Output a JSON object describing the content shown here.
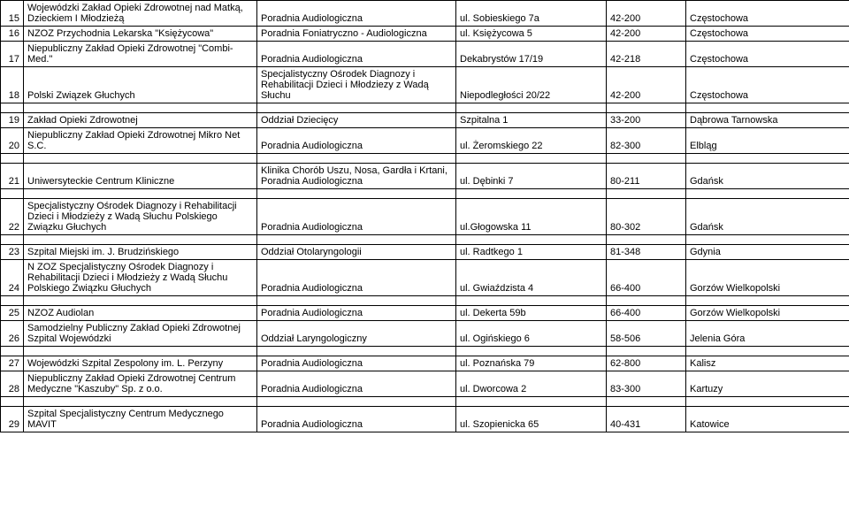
{
  "rows": [
    {
      "n": "15",
      "inst": "Wojewódzki Zakład Opieki Zdrowotnej nad Matką, Dzieckiem I Młodzieżą",
      "dept": "Poradnia Audiologiczna",
      "addr": "ul. Sobieskiego 7a",
      "zip": "42-200",
      "city": "Częstochowa"
    },
    {
      "n": "16",
      "inst": "NZOZ Przychodnia Lekarska \"Księżycowa\"",
      "dept": "Poradnia Foniatryczno - Audiologiczna",
      "addr": "ul. Księżycowa 5",
      "zip": "42-200",
      "city": "Częstochowa"
    },
    {
      "n": "17",
      "inst": "Niepubliczny Zakład Opieki Zdrowotnej \"Combi-Med.\"",
      "dept": "Poradnia Audiologiczna",
      "addr": "Dekabrystów 17/19",
      "zip": "42-218",
      "city": "Częstochowa"
    },
    {
      "n": "18",
      "inst": "Polski Związek Głuchych",
      "dept": "Specjalistyczny Ośrodek Diagnozy i Rehabilitacji Dzieci i Młodziezy z Wadą Słuchu",
      "addr": "Niepodległości 20/22",
      "zip": "42-200",
      "city": "Częstochowa"
    },
    {
      "n": "19",
      "inst": "Zakład Opieki Zdrowotnej",
      "dept": "Oddział Dziecięcy",
      "addr": "Szpitalna 1",
      "zip": "33-200",
      "city": "Dąbrowa Tarnowska"
    },
    {
      "n": "20",
      "inst": "Niepubliczny Zakład Opieki Zdrowotnej Mikro Net S.C.",
      "dept": "Poradnia  Audiologiczna",
      "addr": "ul. Żeromskiego 22",
      "zip": "82-300",
      "city": "Elbląg"
    },
    {
      "n": "21",
      "inst": "Uniwersyteckie Centrum Kliniczne",
      "dept": "Klinika Chorób Uszu, Nosa, Gardła i Krtani, Poradnia Audiologiczna",
      "addr": "ul. Dębinki 7",
      "zip": "80-211",
      "city": "Gdańsk"
    },
    {
      "n": "22",
      "inst": "Specjalistyczny Ośrodek Diagnozy i Rehabilitacji Dzieci i Młodzieży z Wadą Słuchu Polskiego Związku Głuchych",
      "dept": "Poradnia Audiologiczna",
      "addr": "ul.Głogowska 11",
      "zip": "80-302",
      "city": "Gdańsk"
    },
    {
      "n": "23",
      "inst": "Szpital Miejski im. J. Brudzińskiego",
      "dept": "Oddział Otolaryngologii",
      "addr": "ul. Radtkego 1",
      "zip": "81-348",
      "city": "Gdynia"
    },
    {
      "n": "24",
      "inst": "N ZOZ Specjalistyczny Ośrodek Diagnozy i Rehabilitacji Dzieci i Młodzieży z Wadą Słuchu Polskiego Związku Głuchych",
      "dept": "Poradnia Audiologiczna",
      "addr": "ul. Gwiaździsta 4",
      "zip": "66-400",
      "city": "Gorzów Wielkopolski"
    },
    {
      "n": "25",
      "inst": "NZOZ Audiolan",
      "dept": "Poradnia Audiologiczna",
      "addr": "ul. Dekerta 59b",
      "zip": "66-400",
      "city": "Gorzów Wielkopolski"
    },
    {
      "n": "26",
      "inst": "Samodzielny Publiczny Zakład Opieki Zdrowotnej Szpital Wojewódzki",
      "dept": "Oddział Laryngologiczny",
      "addr": "ul. Ogińskiego 6",
      "zip": "58-506",
      "city": "Jelenia Góra"
    },
    {
      "n": "27",
      "inst": "Wojewódzki Szpital Zespolony im. L. Perzyny",
      "dept": "Poradnia Audiologiczna",
      "addr": "ul. Poznańska 79",
      "zip": "62-800",
      "city": "Kalisz"
    },
    {
      "n": "28",
      "inst": "Niepubliczny Zakład Opieki Zdrowotnej Centrum Medyczne \"Kaszuby\" Sp. z o.o.",
      "dept": "Poradnia Audiologiczna",
      "addr": "ul. Dworcowa 2",
      "zip": "83-300",
      "city": "Kartuzy"
    },
    {
      "n": "29",
      "inst": "Szpital Specjalistyczny Centrum Medycznego MAVIT",
      "dept": "Poradnia Audiologiczna",
      "addr": "ul. Szopienicka 65",
      "zip": "40-431",
      "city": "Katowice"
    }
  ],
  "spacerBefore": [
    "19",
    "21",
    "22",
    "23",
    "25",
    "27",
    "29"
  ]
}
